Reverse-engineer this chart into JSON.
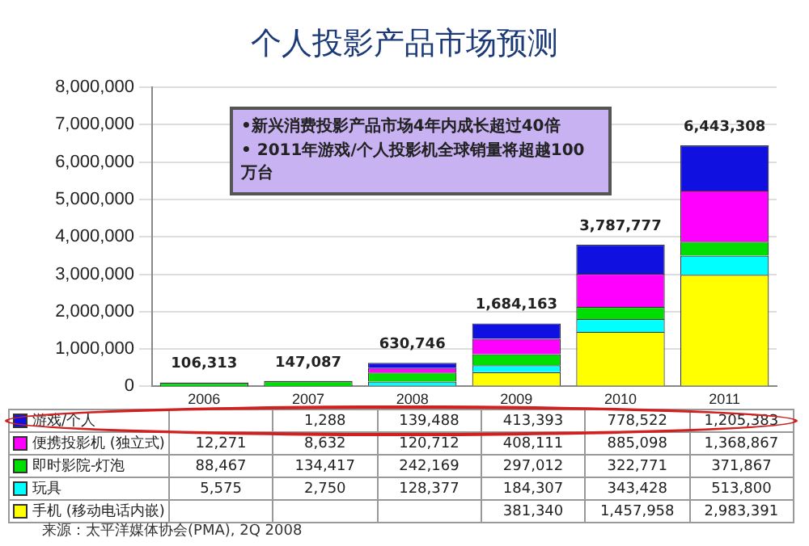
{
  "chart_data": {
    "type": "bar",
    "title": "个人投影产品市场预测",
    "stacked": true,
    "legend": "bottom",
    "categories": [
      "2006",
      "2007",
      "2008",
      "2009",
      "2010",
      "2011"
    ],
    "series": [
      {
        "name": "手机 (移动电话内嵌)",
        "color": "#ffff00",
        "values": [
          null,
          null,
          null,
          381340,
          1457958,
          2983391
        ],
        "value_labels": [
          null,
          null,
          null,
          "381,340",
          "1,457,958",
          "2,983,391"
        ]
      },
      {
        "name": "玩具",
        "color": "#00ffff",
        "values": [
          5575,
          2750,
          128377,
          184307,
          343428,
          513800
        ],
        "value_labels": [
          "5,575",
          "2,750",
          "128,377",
          "184,307",
          "343,428",
          "513,800"
        ]
      },
      {
        "name": "即时影院-灯泡",
        "color": "#00dd00",
        "values": [
          88467,
          134417,
          242169,
          297012,
          322771,
          371867
        ],
        "value_labels": [
          "88,467",
          "134,417",
          "242,169",
          "297,012",
          "322,771",
          "371,867"
        ]
      },
      {
        "name": "便携投影机 (独立式)",
        "color": "#ff00ff",
        "values": [
          12271,
          8632,
          120712,
          408111,
          885098,
          1368867
        ],
        "value_labels": [
          "12,271",
          "8,632",
          "120,712",
          "408,111",
          "885,098",
          "1,368,867"
        ]
      },
      {
        "name": "游戏/个人",
        "color": "#1010e0",
        "values": [
          null,
          1288,
          139488,
          413393,
          778522,
          1205383
        ],
        "value_labels": [
          null,
          "1,288",
          "139,488",
          "413,393",
          "778,522",
          "1,205,383"
        ]
      }
    ],
    "ylim": [
      0,
      8000000
    ],
    "yticks": [
      0,
      {
        "value": 1000000,
        "label": "1,000,000"
      },
      {
        "value": 2000000,
        "label": "2,000,000"
      },
      {
        "value": 3000000,
        "label": "3,000,000"
      },
      {
        "value": 4000000,
        "label": "4,000,000"
      },
      {
        "value": 5000000,
        "label": "5,000,000"
      },
      {
        "value": 6000000,
        "label": "6,000,000"
      },
      {
        "value": 7000000,
        "label": "7,000,000"
      },
      {
        "value": 8000000,
        "label": "8,000,000"
      }
    ],
    "grid": "y",
    "totals": [
      "106,313",
      "147,087",
      "630,746",
      "1,684,163",
      "3,787,777",
      "6,443,308"
    ],
    "annotations": [
      "•新兴消费投影产品市场4年内成长超过40倍",
      "• 2011年游戏/个人投影机全球销量将超越100万台",
      "来源：太平洋媒体协会(PMA), 2Q 2008"
    ]
  }
}
